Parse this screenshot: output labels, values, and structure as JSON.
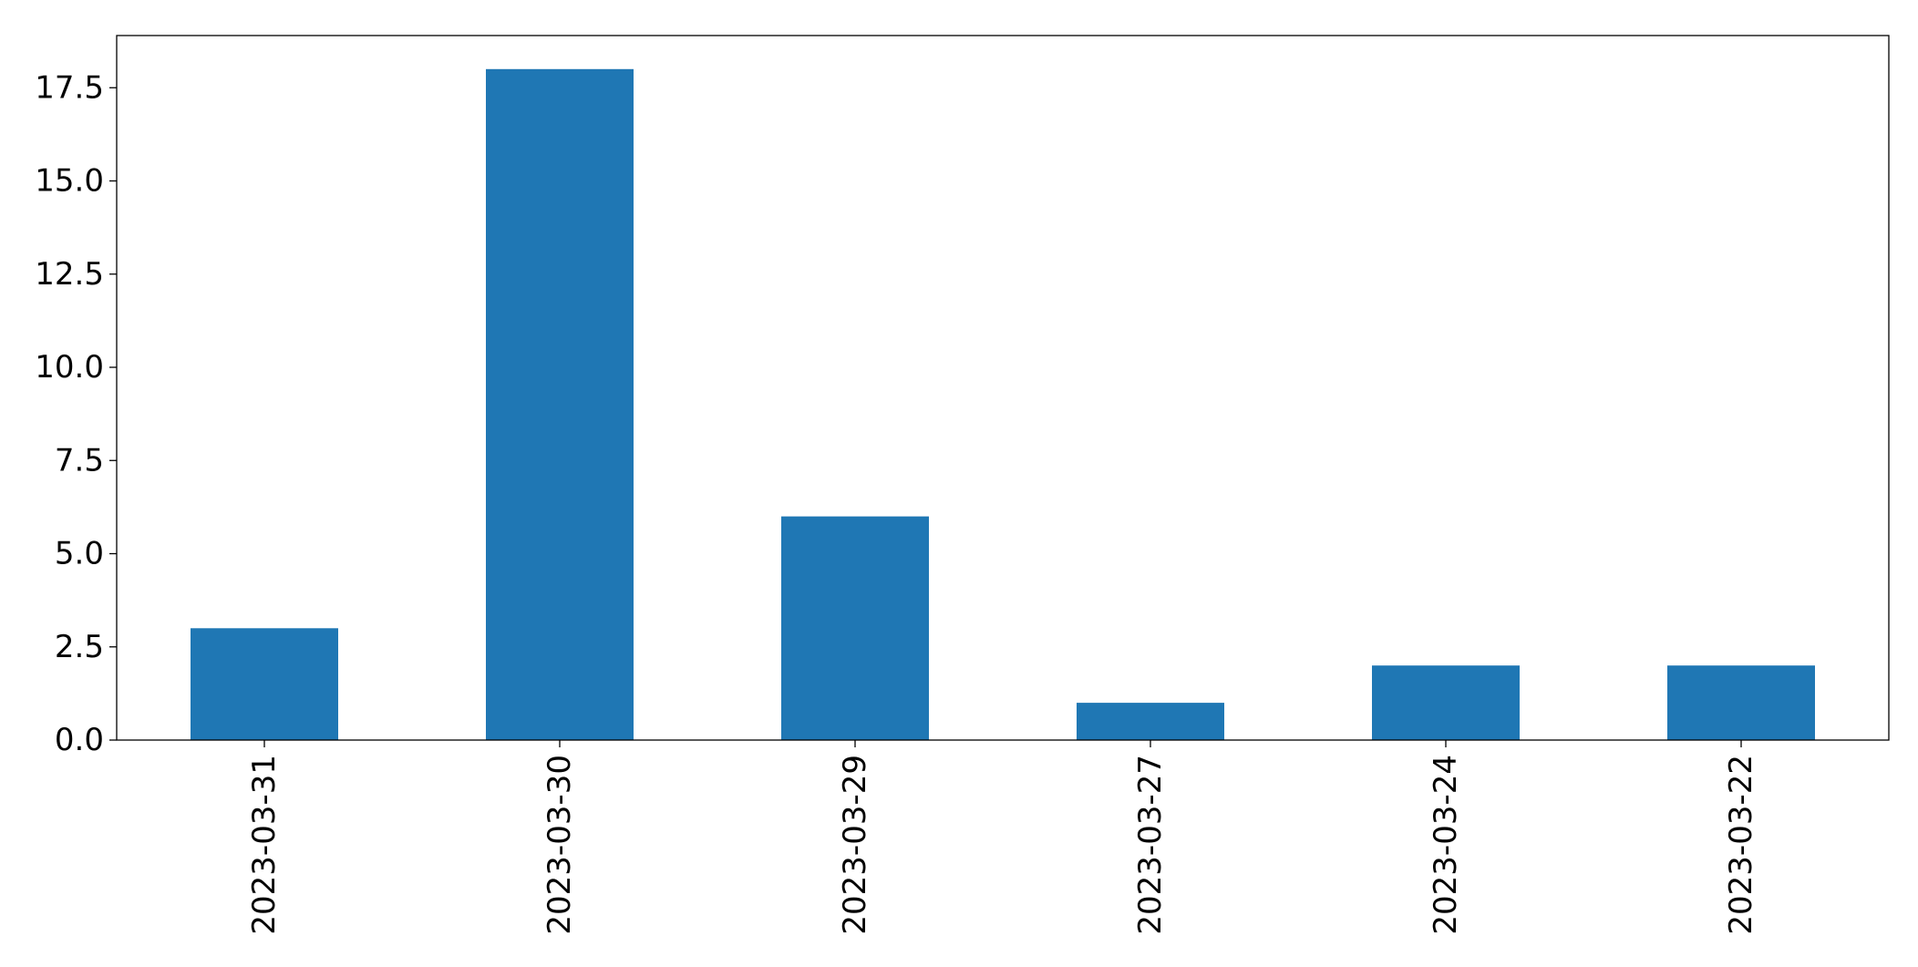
{
  "chart_data": {
    "type": "bar",
    "title": "",
    "xlabel": "",
    "ylabel": "",
    "categories": [
      "2023-03-31",
      "2023-03-30",
      "2023-03-29",
      "2023-03-27",
      "2023-03-24",
      "2023-03-22"
    ],
    "values": [
      3,
      18,
      6,
      1,
      2,
      2
    ],
    "ylim": [
      0,
      18.9
    ],
    "yticks": [
      "0.0",
      "2.5",
      "5.0",
      "7.5",
      "10.0",
      "12.5",
      "15.0",
      "17.5"
    ],
    "x_tick_rotation": "vertical",
    "grid": false,
    "legend": "none",
    "bar_color": "#1f77b4"
  }
}
